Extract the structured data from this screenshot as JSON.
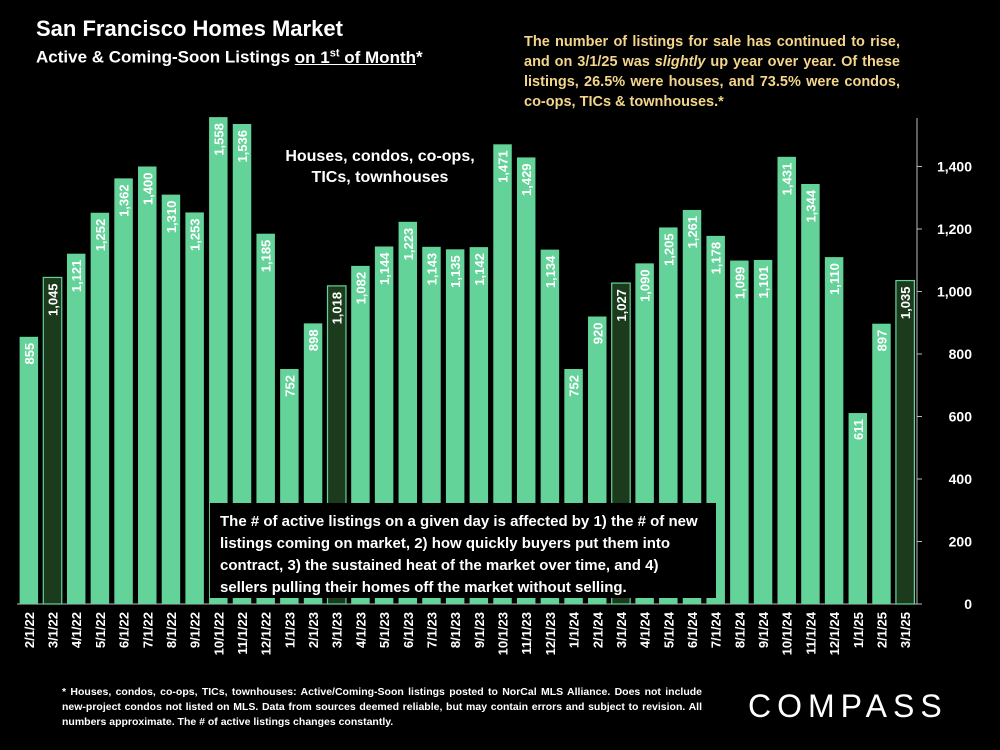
{
  "title": "San Francisco Homes Market",
  "subtitle_pre": "Active & Coming-Soon Listings ",
  "subtitle_underlined": "on 1",
  "subtitle_sup": "st",
  "subtitle_underlined_2": " of Month",
  "subtitle_post": "*",
  "note_part1": "The number of listings for sale has continued to rise, and on 3/1/25 was ",
  "note_italic": "slightly",
  "note_part2": " up year over year. Of these listings, 26.5% were houses, and 73.5% were condos, co-ops, TICs & townhouses.*",
  "series_label_line1": "Houses, condos, co-ops,",
  "series_label_line2": "TICs, townhouses",
  "callout": "The # of active listings on a given day is affected by 1) the # of new listings coming on market, 2) how quickly buyers put them into contract, 3) the sustained heat of the market over time, and 4) sellers pulling their homes off the market without selling.",
  "footnote": "* Houses, condos, co-ops, TICs, townhouses: Active/Coming-Soon listings posted to NorCal MLS Alliance. Does not include new-project condos not listed on MLS. Data from sources deemed reliable, but may contain errors and subject to revision. All numbers approximate. The # of active listings changes constantly.",
  "logo": "COMPASS",
  "colors": {
    "bar": "#64d39a",
    "highlight_bar": "#1c3a1c",
    "background": "#000000",
    "note_text": "#f3d58b"
  },
  "chart_data": {
    "type": "bar",
    "categories": [
      "2/1/22",
      "3/1/22",
      "4/1/22",
      "5/1/22",
      "6/1/22",
      "7/1/22",
      "8/1/22",
      "9/1/22",
      "10/1/22",
      "11/1/22",
      "12/1/22",
      "1/1/23",
      "2/1/23",
      "3/1/23",
      "4/1/23",
      "5/1/23",
      "6/1/23",
      "7/1/23",
      "8/1/23",
      "9/1/23",
      "10/1/23",
      "11/1/23",
      "12/1/23",
      "1/1/24",
      "2/1/24",
      "3/1/24",
      "4/1/24",
      "5/1/24",
      "6/1/24",
      "7/1/24",
      "8/1/24",
      "9/1/24",
      "10/1/24",
      "11/1/24",
      "12/1/24",
      "1/1/25",
      "2/1/25",
      "3/1/25"
    ],
    "values": [
      855,
      1045,
      1121,
      1252,
      1362,
      1400,
      1310,
      1253,
      1558,
      1536,
      1185,
      752,
      898,
      1018,
      1082,
      1144,
      1223,
      1143,
      1135,
      1142,
      1471,
      1429,
      1134,
      752,
      920,
      1027,
      1090,
      1205,
      1261,
      1178,
      1099,
      1101,
      1431,
      1344,
      1110,
      611,
      897,
      1035
    ],
    "value_labels": [
      "855",
      "1,045",
      "1,121",
      "1,252",
      "1,362",
      "1,400",
      "1,310",
      "1,253",
      "1,558",
      "1,536",
      "1,185",
      "752",
      "898",
      "1,018",
      "1,082",
      "1,144",
      "1,223",
      "1,143",
      "1,135",
      "1,142",
      "1,471",
      "1,429",
      "1,134",
      "752",
      "920",
      "1,027",
      "1,090",
      "1,205",
      "1,261",
      "1,178",
      "1,099",
      "1,101",
      "1,431",
      "1,344",
      "1,110",
      "611",
      "897",
      "1,035"
    ],
    "highlighted": [
      "3/1/22",
      "3/1/23",
      "3/1/24",
      "3/1/25"
    ],
    "ylim": [
      0,
      1600
    ],
    "yticks": [
      0,
      200,
      400,
      600,
      800,
      1000,
      1200,
      1400
    ],
    "ytick_labels": [
      "0",
      "200",
      "400",
      "600",
      "800",
      "1,000",
      "1,200",
      "1,400"
    ],
    "xlabel": "",
    "ylabel": "",
    "grid": false,
    "legend": "none"
  }
}
